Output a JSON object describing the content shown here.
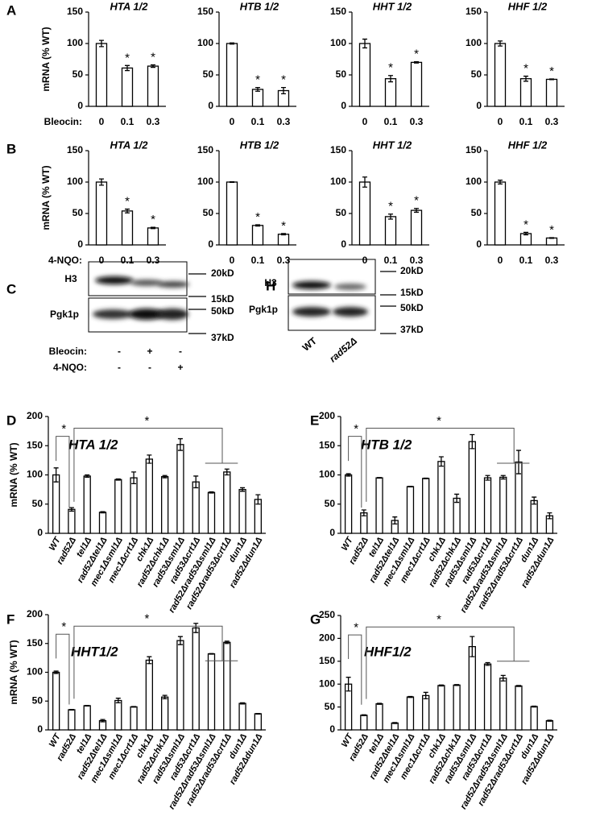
{
  "panel_labels": [
    "A",
    "B",
    "C",
    "D",
    "E",
    "F",
    "G",
    "H"
  ],
  "chart_data": [
    {
      "type": "bar",
      "title": "HTA 1/2",
      "ylabel": "mRNA (% WT)",
      "xlabel": "Bleocin:",
      "categories": [
        "0",
        "0.1",
        "0.3"
      ],
      "values": [
        100,
        61,
        64
      ],
      "errors": [
        5,
        4,
        2
      ],
      "stars": [
        null,
        "*",
        "*"
      ],
      "ylim": [
        0,
        150
      ],
      "yticks": [
        0,
        50,
        100,
        150
      ]
    },
    {
      "type": "bar",
      "title": "HTB 1/2",
      "categories": [
        "0",
        "0.1",
        "0.3"
      ],
      "values": [
        100,
        27,
        25
      ],
      "errors": [
        1,
        3,
        5
      ],
      "stars": [
        null,
        "*",
        "*"
      ],
      "ylim": [
        0,
        150
      ],
      "yticks": [
        0,
        50,
        100,
        150
      ]
    },
    {
      "type": "bar",
      "title": "HHT 1/2",
      "categories": [
        "0",
        "0.1",
        "0.3"
      ],
      "values": [
        100,
        44,
        70
      ],
      "errors": [
        7,
        5,
        1
      ],
      "stars": [
        null,
        "*",
        "*"
      ],
      "ylim": [
        0,
        150
      ],
      "yticks": [
        0,
        50,
        100,
        150
      ]
    },
    {
      "type": "bar",
      "title": "HHF 1/2",
      "categories": [
        "0",
        "0.1",
        "0.3"
      ],
      "values": [
        100,
        44,
        43
      ],
      "errors": [
        4,
        4,
        0.5
      ],
      "stars": [
        null,
        "*",
        "*"
      ],
      "ylim": [
        0,
        150
      ],
      "yticks": [
        0,
        50,
        100,
        150
      ]
    },
    {
      "type": "bar",
      "title": "HTA 1/2",
      "ylabel": "mRNA (% WT)",
      "xlabel": "4-NQO:",
      "categories": [
        "0",
        "0.1",
        "0.3"
      ],
      "values": [
        100,
        54,
        27
      ],
      "errors": [
        5,
        3,
        1
      ],
      "stars": [
        null,
        "*",
        "*"
      ],
      "ylim": [
        0,
        150
      ],
      "yticks": [
        0,
        50,
        100,
        150
      ]
    },
    {
      "type": "bar",
      "title": "HTB 1/2",
      "categories": [
        "0",
        "0.1",
        "0.3"
      ],
      "values": [
        100,
        31,
        17
      ],
      "errors": [
        0.5,
        1,
        1
      ],
      "stars": [
        null,
        "*",
        "*"
      ],
      "ylim": [
        0,
        150
      ],
      "yticks": [
        0,
        50,
        100,
        150
      ]
    },
    {
      "type": "bar",
      "title": "HHT 1/2",
      "categories": [
        "0",
        "0.1",
        "0.3"
      ],
      "values": [
        100,
        45,
        55
      ],
      "errors": [
        8,
        4,
        3
      ],
      "stars": [
        null,
        "*",
        "*"
      ],
      "ylim": [
        0,
        150
      ],
      "yticks": [
        0,
        50,
        100,
        150
      ]
    },
    {
      "type": "bar",
      "title": "HHF 1/2",
      "categories": [
        "0",
        "0.1",
        "0.3"
      ],
      "values": [
        100,
        18,
        11
      ],
      "errors": [
        3,
        2,
        0.5
      ],
      "stars": [
        null,
        "*",
        "*"
      ],
      "ylim": [
        0,
        150
      ],
      "yticks": [
        0,
        50,
        100,
        150
      ]
    },
    {
      "type": "bar",
      "title": "HTA 1/2",
      "ylabel": "mRNA (% WT)",
      "categories": [
        "WT",
        "rad52Δ",
        "tel1Δ",
        "rad52Δtel1Δ",
        "mec1Δsml1Δ",
        "mec1Δcrt1Δ",
        "chk1Δ",
        "rad52Δchk1Δ",
        "rad53Δsml1Δ",
        "rad53Δcrt1Δ",
        "rad52Δrad53Δsml1Δ",
        "rad52Δrad53Δcrt1Δ",
        "dun1Δ",
        "rad52Δdun1Δ"
      ],
      "values": [
        100,
        41,
        98,
        36,
        92,
        95,
        127,
        97,
        152,
        88,
        70,
        105,
        75,
        58
      ],
      "errors": [
        12,
        3,
        2,
        1,
        1,
        10,
        7,
        2,
        10,
        10,
        1,
        5,
        3,
        8
      ],
      "brackets": [
        "*",
        "*"
      ],
      "ylim": [
        0,
        200
      ],
      "yticks": [
        0,
        50,
        100,
        150,
        200
      ]
    },
    {
      "type": "bar",
      "title": "HTB 1/2",
      "categories": [
        "WT",
        "rad52Δ",
        "tel1Δ",
        "rad52Δtel1Δ",
        "mec1Δsml1Δ",
        "mec1Δcrt1Δ",
        "chk1Δ",
        "rad52Δchk1Δ",
        "rad53Δsml1Δ",
        "rad53Δcrt1Δ",
        "rad52Δrad53Δsml1Δ",
        "rad52Δrad53Δcrt1Δ",
        "dun1Δ",
        "rad52Δdun1Δ"
      ],
      "values": [
        100,
        35,
        95,
        22,
        80,
        94,
        123,
        60,
        157,
        95,
        96,
        122,
        56,
        30
      ],
      "errors": [
        2,
        5,
        0.5,
        6,
        0.5,
        0.5,
        8,
        7,
        12,
        4,
        3,
        20,
        6,
        5
      ],
      "brackets": [
        "*",
        "*"
      ],
      "ylim": [
        0,
        200
      ],
      "yticks": [
        0,
        50,
        100,
        150,
        200
      ]
    },
    {
      "type": "bar",
      "title": "HHT1/2",
      "ylabel": "mRNA (% WT)",
      "categories": [
        "WT",
        "rad52Δ",
        "tel1Δ",
        "rad52Δtel1Δ",
        "mec1Δsml1Δ",
        "mec1Δcrt1Δ",
        "chk1Δ",
        "rad52Δchk1Δ",
        "rad53Δsml1Δ",
        "rad53Δcrt1Δ",
        "rad52Δrad53Δsml1Δ",
        "rad52Δrad53Δcrt1Δ",
        "dun1Δ",
        "rad52Δdun1Δ"
      ],
      "values": [
        100,
        35,
        42,
        16,
        51,
        40,
        121,
        57,
        155,
        177,
        132,
        152,
        46,
        28
      ],
      "errors": [
        2,
        0.5,
        0.5,
        2,
        4,
        0.5,
        6,
        3,
        7,
        8,
        0.5,
        2,
        1,
        0.5
      ],
      "brackets": [
        "*",
        "*"
      ],
      "ylim": [
        0,
        200
      ],
      "yticks": [
        0,
        50,
        100,
        150,
        200
      ]
    },
    {
      "type": "bar",
      "title": "HHF1/2",
      "categories": [
        "WT",
        "rad52Δ",
        "tel1Δ",
        "rad52Δtel1Δ",
        "mec1Δsml1Δ",
        "mec1Δcrt1Δ",
        "chk1Δ",
        "rad52Δchk1Δ",
        "rad53Δsml1Δ",
        "rad53Δcrt1Δ",
        "rad52Δrad53Δsml1Δ",
        "rad52Δrad53Δcrt1Δ",
        "dun1Δ",
        "rad52Δdun1Δ"
      ],
      "values": [
        100,
        32,
        57,
        15,
        72,
        75,
        97,
        98,
        182,
        144,
        113,
        96,
        51,
        20
      ],
      "errors": [
        15,
        1,
        1,
        1,
        1,
        7,
        1,
        1,
        22,
        3,
        6,
        1,
        1,
        1
      ],
      "brackets": [
        "*",
        "*"
      ],
      "ylim": [
        0,
        250
      ],
      "yticks": [
        0,
        50,
        100,
        150,
        200,
        250
      ]
    }
  ],
  "blots": [
    {
      "rows": [
        "H3",
        "Pgk1p"
      ],
      "markers": [
        "20kD",
        "15kD",
        "50kD",
        "37kD"
      ],
      "treatments": [
        {
          "label": "Bleocin:",
          "lanes": [
            "-",
            "+",
            "-"
          ]
        },
        {
          "label": "4-NQO:",
          "lanes": [
            "-",
            "-",
            "+"
          ]
        }
      ]
    },
    {
      "rows": [
        "H3",
        "Pgk1p"
      ],
      "markers": [
        "20kD",
        "15kD",
        "50kD",
        "37kD"
      ],
      "lanes": [
        "WT",
        "rad52Δ"
      ]
    }
  ]
}
